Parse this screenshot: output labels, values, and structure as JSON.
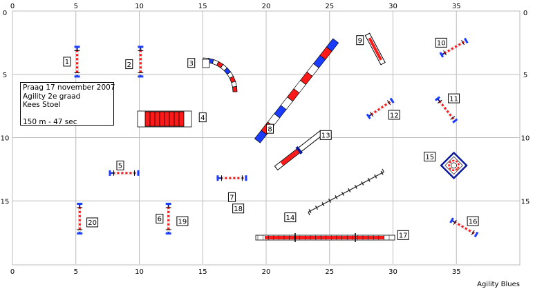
{
  "axes": {
    "x_ticks": [
      0,
      5,
      10,
      15,
      20,
      25,
      30,
      35
    ],
    "y_ticks": [
      0,
      5,
      10,
      15
    ],
    "x_range": [
      0,
      40
    ],
    "y_range": [
      0,
      20
    ]
  },
  "info": {
    "line1": "Praag 17 november 2007",
    "line2": "Agility 2e graad",
    "line3": "Kees Stoel",
    "line4": "150 m - 47 sec"
  },
  "credit": "Agility Blues",
  "obstacles": [
    {
      "n": "1",
      "type": "jump",
      "x": 5.1,
      "y": 4.0,
      "angle": 90
    },
    {
      "n": "2",
      "type": "jump",
      "x": 10.1,
      "y": 4.0,
      "angle": 90
    },
    {
      "n": "3",
      "type": "tunnel-curve",
      "x": 15.0,
      "y": 4.0
    },
    {
      "n": "4",
      "type": "tunnel-straight",
      "x": 10.0,
      "y": 8.4
    },
    {
      "n": "5",
      "type": "jump",
      "x": 8.8,
      "y": 12.8,
      "angle": 0
    },
    {
      "n": "6",
      "type": "jump",
      "x": 12.3,
      "y": 16.4,
      "angle": 90
    },
    {
      "n": "7",
      "type": "jump",
      "x": 17.3,
      "y": 13.2,
      "angle": 0
    },
    {
      "n": "8",
      "type": "dogwalk",
      "x": 22.4,
      "y": 6.3,
      "angle": -52
    },
    {
      "n": "9",
      "type": "jump-wall",
      "x": 28.6,
      "y": 3.0,
      "angle": 62
    },
    {
      "n": "10",
      "type": "jump",
      "x": 34.8,
      "y": 2.9,
      "angle": -30
    },
    {
      "n": "11",
      "type": "jump",
      "x": 34.2,
      "y": 7.8,
      "angle": 52
    },
    {
      "n": "12",
      "type": "jump",
      "x": 29.0,
      "y": 7.7,
      "angle": -34
    },
    {
      "n": "13",
      "type": "seesaw",
      "x": 22.6,
      "y": 11.0,
      "angle": -38
    },
    {
      "n": "14",
      "type": "weave",
      "x": 26.3,
      "y": 14.3,
      "angle": -28
    },
    {
      "n": "15",
      "type": "tire",
      "x": 34.8,
      "y": 12.2
    },
    {
      "n": "16",
      "type": "jump",
      "x": 35.6,
      "y": 17.1,
      "angle": 30
    },
    {
      "n": "17",
      "type": "walk",
      "x": 24.8,
      "y": 17.8,
      "angle": 0
    },
    {
      "n": "18",
      "type": "label",
      "x": 17.3,
      "y": 15.4
    },
    {
      "n": "19",
      "type": "label",
      "x": 12.3,
      "y": 16.4
    },
    {
      "n": "20",
      "type": "jump",
      "x": 5.3,
      "y": 16.4,
      "angle": 90
    }
  ],
  "number_labels": [
    {
      "n": "1",
      "x": 4.3,
      "y": 4.0
    },
    {
      "n": "2",
      "x": 9.2,
      "y": 4.2
    },
    {
      "n": "3",
      "x": 14.1,
      "y": 4.1
    },
    {
      "n": "4",
      "x": 15.0,
      "y": 8.4
    },
    {
      "n": "5",
      "x": 8.5,
      "y": 12.2
    },
    {
      "n": "6",
      "x": 11.6,
      "y": 16.4
    },
    {
      "n": "7",
      "x": 17.3,
      "y": 14.7
    },
    {
      "n": "8",
      "x": 20.3,
      "y": 9.3
    },
    {
      "n": "9",
      "x": 27.4,
      "y": 2.3
    },
    {
      "n": "10",
      "x": 33.8,
      "y": 2.5
    },
    {
      "n": "11",
      "x": 34.8,
      "y": 6.9
    },
    {
      "n": "12",
      "x": 30.1,
      "y": 8.2
    },
    {
      "n": "13",
      "x": 24.7,
      "y": 9.8
    },
    {
      "n": "14",
      "x": 21.9,
      "y": 16.3
    },
    {
      "n": "15",
      "x": 32.9,
      "y": 11.5
    },
    {
      "n": "16",
      "x": 36.3,
      "y": 16.6
    },
    {
      "n": "17",
      "x": 30.8,
      "y": 17.7
    },
    {
      "n": "18",
      "x": 17.8,
      "y": 15.6
    },
    {
      "n": "19",
      "x": 13.4,
      "y": 16.6
    },
    {
      "n": "20",
      "x": 6.3,
      "y": 16.7
    }
  ],
  "colors": {
    "grid": "#bcbcbc",
    "red": "#ff1a1a",
    "blue": "#1a3cff",
    "dark_blue": "#0a1a9a",
    "dark": "#222222"
  }
}
